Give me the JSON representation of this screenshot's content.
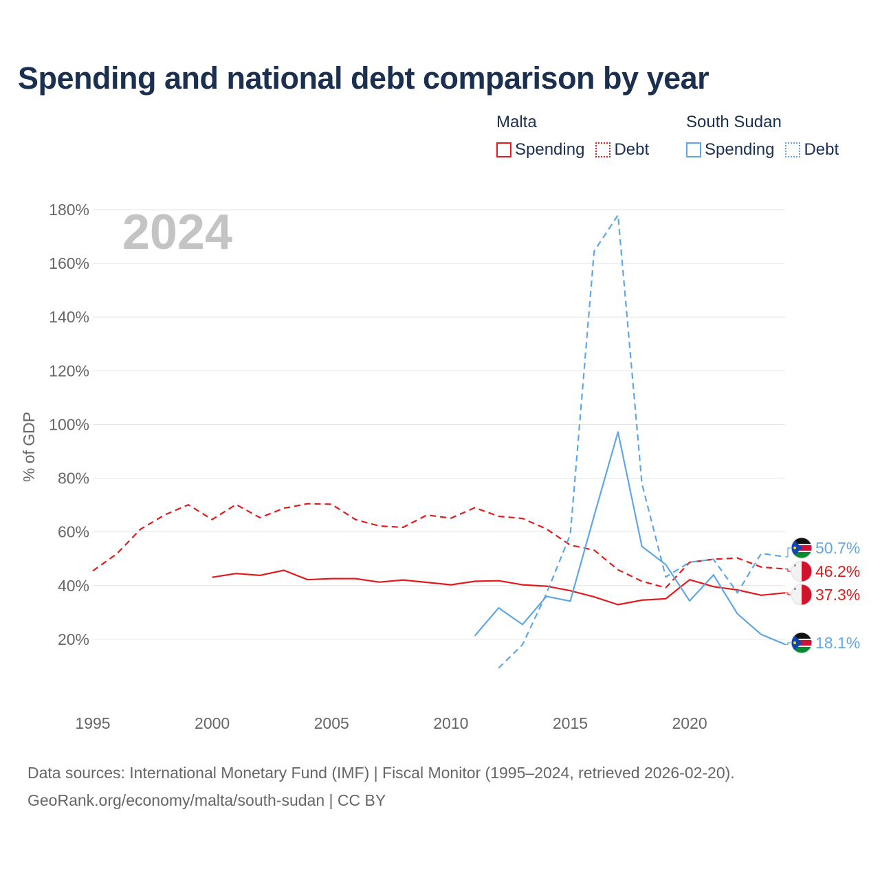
{
  "title": "Spending and national debt comparison by year",
  "legend": {
    "groups": [
      {
        "name": "Malta",
        "color": "#e31a1c",
        "items": [
          {
            "label": "Spending",
            "style": "solid"
          },
          {
            "label": "Debt",
            "style": "dotted"
          }
        ]
      },
      {
        "name": "South Sudan",
        "color": "#5fa6e6",
        "items": [
          {
            "label": "Spending",
            "style": "solid"
          },
          {
            "label": "Debt",
            "style": "dotted"
          }
        ]
      }
    ]
  },
  "year_watermark": "2024",
  "chart_data": {
    "type": "line",
    "title": "Spending and national debt comparison by year",
    "xlabel": "",
    "ylabel": "% of GDP",
    "xlim": [
      1995,
      2024
    ],
    "ylim": [
      0,
      180
    ],
    "x_ticks": [
      1995,
      2000,
      2005,
      2010,
      2015,
      2020
    ],
    "x_tick_labels": [
      "1995",
      "2000",
      "2005",
      "2010",
      "2015",
      "2020"
    ],
    "y_ticks": [
      20,
      40,
      60,
      80,
      100,
      120,
      140,
      160,
      180
    ],
    "y_tick_labels": [
      "20%",
      "40%",
      "60%",
      "80%",
      "100%",
      "120%",
      "140%",
      "160%",
      "180%"
    ],
    "grid": true,
    "series": [
      {
        "name": "Malta Debt",
        "country": "Malta",
        "metric": "Debt",
        "color": "#e31a1c",
        "dash": true,
        "x": [
          1995,
          1996,
          1997,
          1998,
          1999,
          2000,
          2001,
          2002,
          2003,
          2004,
          2005,
          2006,
          2007,
          2008,
          2009,
          2010,
          2011,
          2012,
          2013,
          2014,
          2015,
          2016,
          2017,
          2018,
          2019,
          2020,
          2021,
          2022,
          2023,
          2024
        ],
        "values": [
          45.5,
          51.8,
          61.0,
          66.3,
          70.1,
          64.6,
          70.2,
          65.3,
          68.8,
          70.5,
          70.3,
          64.6,
          62.2,
          61.7,
          66.3,
          65.1,
          69.0,
          65.8,
          65.0,
          61.1,
          55.1,
          53.2,
          45.9,
          41.6,
          39.2,
          48.7,
          49.8,
          50.3,
          46.9,
          46.2
        ],
        "end_label": "46.2%"
      },
      {
        "name": "Malta Spending",
        "country": "Malta",
        "metric": "Spending",
        "color": "#e31a1c",
        "dash": false,
        "x": [
          2000,
          2001,
          2002,
          2003,
          2004,
          2005,
          2006,
          2007,
          2008,
          2009,
          2010,
          2011,
          2012,
          2013,
          2014,
          2015,
          2016,
          2017,
          2018,
          2019,
          2020,
          2021,
          2022,
          2023,
          2024
        ],
        "values": [
          43.1,
          44.5,
          43.8,
          45.7,
          42.2,
          42.6,
          42.6,
          41.3,
          42.1,
          41.2,
          40.3,
          41.6,
          41.8,
          40.3,
          39.8,
          38.1,
          35.8,
          32.9,
          34.6,
          35.1,
          42.2,
          39.6,
          38.4,
          36.4,
          37.3
        ],
        "end_label": "37.3%"
      },
      {
        "name": "South Sudan Debt",
        "country": "South Sudan",
        "metric": "Debt",
        "color": "#5fa6e6",
        "dash": true,
        "x": [
          2012,
          2013,
          2014,
          2015,
          2016,
          2017,
          2018,
          2019,
          2020,
          2021,
          2022,
          2023,
          2024
        ],
        "values": [
          9.3,
          18.0,
          37.0,
          59.0,
          164.5,
          178.0,
          78.0,
          43.2,
          48.7,
          49.8,
          37.3,
          52.0,
          50.7
        ],
        "end_label": "50.7%"
      },
      {
        "name": "South Sudan Spending",
        "country": "South Sudan",
        "metric": "Spending",
        "color": "#5fa6e6",
        "dash": false,
        "x": [
          2011,
          2012,
          2013,
          2014,
          2015,
          2016,
          2017,
          2018,
          2019,
          2020,
          2021,
          2022,
          2023,
          2024
        ],
        "values": [
          21.3,
          31.7,
          25.5,
          36.0,
          34.2,
          66.0,
          97.2,
          54.6,
          47.8,
          34.3,
          44.0,
          29.5,
          21.8,
          18.1
        ],
        "end_label": "18.1%"
      }
    ]
  },
  "footer": {
    "line1": "Data sources: International Monetary Fund (IMF) | Fiscal Monitor (1995–2024, retrieved 2026-02-20).",
    "line2": "GeoRank.org/economy/malta/south-sudan | CC BY"
  }
}
